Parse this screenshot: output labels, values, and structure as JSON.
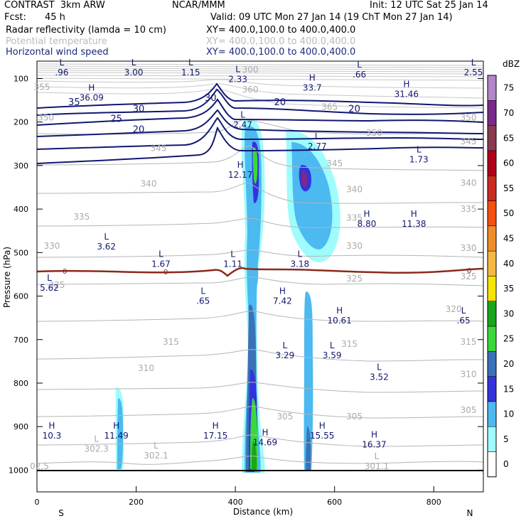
{
  "header": {
    "model": "CONTRAST  3km ARW",
    "org": "NCAR/MMM",
    "init": "Init: 12 UTC Sat 25 Jan 14",
    "fcst_label": "Fcst:",
    "fcst_value": "45 h",
    "valid": "Valid: 09 UTC Mon 27 Jan 14 (19 ChT Mon 27 Jan 14)",
    "fields": [
      {
        "name": "Radar reflectivity (lamda = 10 cm)",
        "xy": "XY= 400.0,100.0 to 400.0,400.0"
      },
      {
        "name": "Potential temperature",
        "xy": "XY= 400.0,100.0 to 400.0,400.0"
      },
      {
        "name": "Horizontal wind speed",
        "xy": "XY= 400.0,100.0 to 400.0,400.0"
      }
    ]
  },
  "chart_data": {
    "type": "cross-section",
    "xlabel": "Distance (km)",
    "ylabel": "Pressure (hPa)",
    "x_ticks": [
      "0",
      "200",
      "400",
      "600",
      "800"
    ],
    "x_tick_values": [
      0,
      200,
      400,
      600,
      800
    ],
    "xlim": [
      0,
      900
    ],
    "y_ticks": [
      "100",
      "200",
      "300",
      "400",
      "500",
      "600",
      "700",
      "800",
      "900",
      "1000"
    ],
    "y_tick_values": [
      100,
      200,
      300,
      400,
      500,
      600,
      700,
      800,
      900,
      1000
    ],
    "ylim": [
      60,
      1050
    ],
    "left_end": "S",
    "right_end": "N",
    "colorbar": {
      "unit": "dBZ",
      "labels": [
        "0",
        "5",
        "10",
        "15",
        "20",
        "25",
        "30",
        "35",
        "40",
        "45",
        "50",
        "55",
        "60",
        "65",
        "70",
        "75"
      ],
      "colors": [
        "#ffffff",
        "#9ffcfc",
        "#4cb9f0",
        "#3333dd",
        "#3a72b8",
        "#3ad93a",
        "#1aa61a",
        "#f7e600",
        "#f5b942",
        "#f08c2a",
        "#f74f0f",
        "#cc2b1f",
        "#b3001a",
        "#8b3a52",
        "#7a2a8a",
        "#b385c9"
      ]
    },
    "wind_speed_contours": [
      {
        "label": "35",
        "p": 155
      },
      {
        "label": "30",
        "p": 170
      },
      {
        "label": "25",
        "p": 193
      },
      {
        "label": "20",
        "p": 218
      },
      {
        "label": "30",
        "p": 145
      },
      {
        "label": "20",
        "p": 155
      },
      {
        "label": "20",
        "p": 170
      }
    ],
    "theta_labels": [
      {
        "label": "355",
        "x": 10,
        "p": 120
      },
      {
        "label": "350",
        "x": 18,
        "p": 190
      },
      {
        "label": "345",
        "x": 245,
        "p": 260
      },
      {
        "label": "340",
        "x": 225,
        "p": 342
      },
      {
        "label": "335",
        "x": 90,
        "p": 418
      },
      {
        "label": "330",
        "x": 30,
        "p": 485
      },
      {
        "label": "325",
        "x": 40,
        "p": 575
      },
      {
        "label": "320",
        "x": 840,
        "p": 630
      },
      {
        "label": "315",
        "x": 270,
        "p": 705
      },
      {
        "label": "310",
        "x": 220,
        "p": 766
      },
      {
        "label": "305",
        "x": 640,
        "p": 877
      },
      {
        "label": "300",
        "x": 430,
        "p": 80
      },
      {
        "label": "360",
        "x": 430,
        "p": 125
      },
      {
        "label": "365",
        "x": 590,
        "p": 165
      },
      {
        "label": "350",
        "x": 680,
        "p": 225
      },
      {
        "label": "345",
        "x": 600,
        "p": 295
      },
      {
        "label": "340",
        "x": 640,
        "p": 355
      },
      {
        "label": "335",
        "x": 640,
        "p": 420
      },
      {
        "label": "330",
        "x": 640,
        "p": 485
      },
      {
        "label": "325",
        "x": 640,
        "p": 560
      },
      {
        "label": "315",
        "x": 630,
        "p": 710
      },
      {
        "label": "310",
        "x": 870,
        "p": 780
      },
      {
        "label": "305",
        "x": 870,
        "p": 862
      },
      {
        "label": "350",
        "x": 870,
        "p": 190
      },
      {
        "label": "345",
        "x": 870,
        "p": 245
      },
      {
        "label": "340",
        "x": 870,
        "p": 340
      },
      {
        "label": "335",
        "x": 870,
        "p": 400
      },
      {
        "label": "330",
        "x": 870,
        "p": 490
      },
      {
        "label": "325",
        "x": 870,
        "p": 555
      },
      {
        "label": "315",
        "x": 870,
        "p": 705
      },
      {
        "label": "305",
        "x": 500,
        "p": 877
      }
    ],
    "highs_lows": [
      {
        "type": "L",
        "value": ".96",
        "x": 50,
        "p": 70
      },
      {
        "type": "L",
        "value": "3.00",
        "x": 195,
        "p": 70
      },
      {
        "type": "L",
        "value": "1.15",
        "x": 310,
        "p": 70
      },
      {
        "type": "L",
        "value": "2.33",
        "x": 405,
        "p": 85
      },
      {
        "type": "L",
        "value": ".66",
        "x": 650,
        "p": 75
      },
      {
        "type": "L",
        "value": "2.55",
        "x": 880,
        "p": 70
      },
      {
        "type": "H",
        "value": "36.09",
        "x": 110,
        "p": 128
      },
      {
        "type": "H",
        "value": "33.7",
        "x": 555,
        "p": 105
      },
      {
        "type": "H",
        "value": "31.46",
        "x": 745,
        "p": 120
      },
      {
        "type": "L",
        "value": "2.47",
        "x": 415,
        "p": 190
      },
      {
        "type": "L",
        "value": "2.77",
        "x": 565,
        "p": 240
      },
      {
        "type": "L",
        "value": "1.73",
        "x": 770,
        "p": 270
      },
      {
        "type": "H",
        "value": "12.17",
        "x": 410,
        "p": 305
      },
      {
        "type": "H",
        "value": "8.80",
        "x": 665,
        "p": 418
      },
      {
        "type": "H",
        "value": "11.38",
        "x": 760,
        "p": 418
      },
      {
        "type": "L",
        "value": "3.62",
        "x": 140,
        "p": 470
      },
      {
        "type": "L",
        "value": "1.67",
        "x": 250,
        "p": 510
      },
      {
        "type": "L",
        "value": "1.11",
        "x": 395,
        "p": 510
      },
      {
        "type": "L",
        "value": "3.18",
        "x": 530,
        "p": 510
      },
      {
        "type": "L",
        "value": "5.62",
        "x": 25,
        "p": 565
      },
      {
        "type": "L",
        "value": ".65",
        "x": 335,
        "p": 595
      },
      {
        "type": "H",
        "value": "7.42",
        "x": 495,
        "p": 595
      },
      {
        "type": "H",
        "value": "10.61",
        "x": 610,
        "p": 640
      },
      {
        "type": "L",
        "value": ".65",
        "x": 860,
        "p": 640
      },
      {
        "type": "L",
        "value": "3.29",
        "x": 500,
        "p": 720
      },
      {
        "type": "L",
        "value": "3.59",
        "x": 595,
        "p": 720
      },
      {
        "type": "L",
        "value": "3.52",
        "x": 690,
        "p": 770
      },
      {
        "type": "H",
        "value": "10.3",
        "x": 30,
        "p": 905
      },
      {
        "type": "H",
        "value": "11.49",
        "x": 160,
        "p": 905
      },
      {
        "type": "L",
        "value": "302.3",
        "x": 120,
        "p": 935
      },
      {
        "type": "L",
        "value": "302.1",
        "x": 240,
        "p": 950
      },
      {
        "type": "H",
        "value": "17.15",
        "x": 360,
        "p": 905
      },
      {
        "type": "H",
        "value": "14.69",
        "x": 460,
        "p": 920
      },
      {
        "type": "H",
        "value": "15.55",
        "x": 575,
        "p": 905
      },
      {
        "type": "H",
        "value": "16.37",
        "x": 680,
        "p": 925
      },
      {
        "type": "L",
        "value": "301.1",
        "x": 685,
        "p": 975
      },
      {
        "type": "",
        "value": "02.5",
        "x": 5,
        "p": 975
      }
    ],
    "freezing_level_label": "0"
  }
}
